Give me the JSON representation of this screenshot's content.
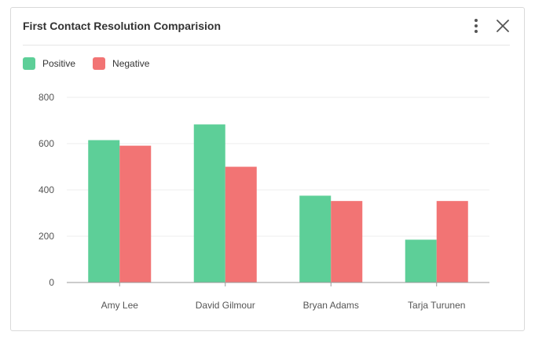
{
  "card": {
    "title": "First Contact Resolution Comparision"
  },
  "icons": {
    "menu": "kebab-vertical-icon",
    "close": "close-x-icon"
  },
  "colors": {
    "positive": "#5dcf98",
    "negative": "#f27474",
    "grid": "#eeeeee",
    "axis": "#999999"
  },
  "chart_data": {
    "type": "bar",
    "categories": [
      "Amy Lee",
      "David Gilmour",
      "Bryan Adams",
      "Tarja Turunen"
    ],
    "series": [
      {
        "name": "Positive",
        "values": [
          615,
          683,
          375,
          185
        ]
      },
      {
        "name": "Negative",
        "values": [
          591,
          500,
          352,
          352
        ]
      }
    ],
    "ylim": [
      0,
      800
    ],
    "yticks": [
      0,
      200,
      400,
      600,
      800
    ],
    "legend": "top-left",
    "grid": true
  }
}
